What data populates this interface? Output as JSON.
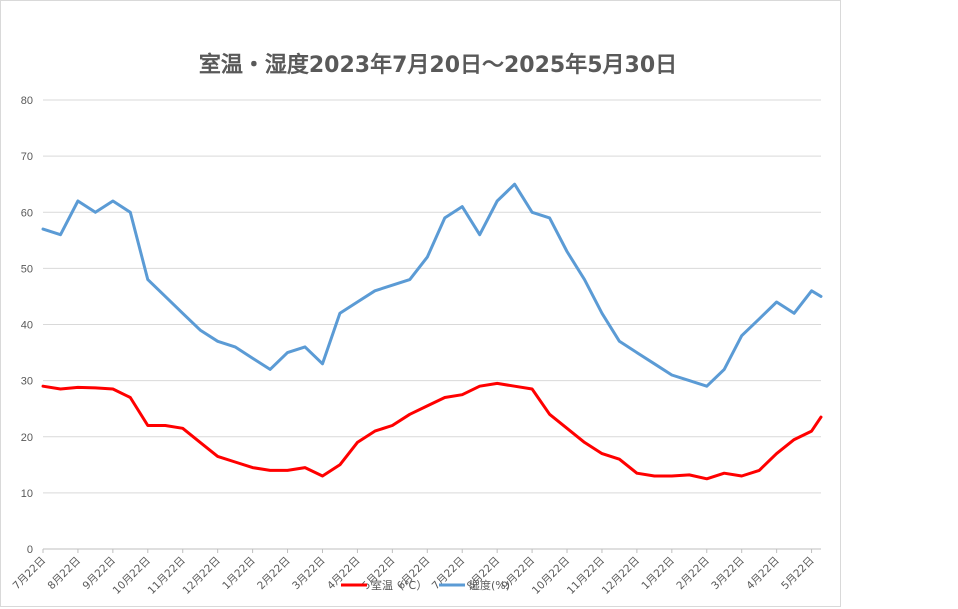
{
  "chart_data": {
    "type": "line",
    "title": "室温・湿度2023年7月20日～2025年5月30日",
    "xlabel": "",
    "ylabel": "",
    "ylim": [
      0,
      80
    ],
    "yticks": [
      "0",
      "10",
      "20",
      "30",
      "40",
      "50",
      "60",
      "70",
      "80"
    ],
    "xtick_labels": [
      "7月22日",
      "8月22日",
      "9月22日",
      "10月22日",
      "11月22日",
      "12月22日",
      "1月22日",
      "2月22日",
      "3月22日",
      "4月22日",
      "5月22日",
      "6月22日",
      "7月22日",
      "8月22日",
      "9月22日",
      "10月22日",
      "11月22日",
      "12月22日",
      "1月22日",
      "2月22日",
      "3月22日",
      "4月22日",
      "5月22日"
    ],
    "grid": true,
    "legend": "bottom",
    "x": [
      0,
      0.5,
      1,
      1.5,
      2,
      2.5,
      3,
      3.5,
      4,
      4.5,
      5,
      5.5,
      6,
      6.5,
      7,
      7.5,
      8,
      8.5,
      9,
      9.5,
      10,
      10.5,
      11,
      11.5,
      12,
      12.5,
      13,
      13.5,
      14,
      14.5,
      15,
      15.5,
      16,
      16.5,
      17,
      17.5,
      18,
      18.5,
      19,
      19.5,
      20,
      20.5,
      21,
      21.5,
      22,
      22.27
    ],
    "series": [
      {
        "name": "室温（℃）",
        "color": "#ff0000",
        "values": [
          29,
          28.5,
          28.8,
          28.7,
          28.5,
          27,
          22,
          22,
          21.5,
          19,
          16.5,
          15.5,
          14.5,
          14,
          14,
          14.5,
          13,
          15,
          19,
          21,
          22,
          24,
          25.5,
          27,
          27.5,
          29,
          29.5,
          29,
          28.5,
          24,
          21.5,
          19,
          17,
          16,
          13.5,
          13,
          13,
          13.2,
          12.5,
          13.5,
          13,
          14,
          17,
          19.5,
          21,
          23.5
        ]
      },
      {
        "name": "湿度(%)",
        "color": "#5b9bd5",
        "values": [
          57,
          56,
          62,
          60,
          62,
          60,
          48,
          45,
          42,
          39,
          37,
          36,
          34,
          32,
          35,
          36,
          33,
          42,
          44,
          46,
          47,
          48,
          52,
          59,
          61,
          56,
          62,
          65,
          60,
          59,
          53,
          48,
          42,
          37,
          35,
          33,
          31,
          30,
          29,
          32,
          38,
          41,
          44,
          42,
          46,
          45
        ]
      }
    ]
  }
}
